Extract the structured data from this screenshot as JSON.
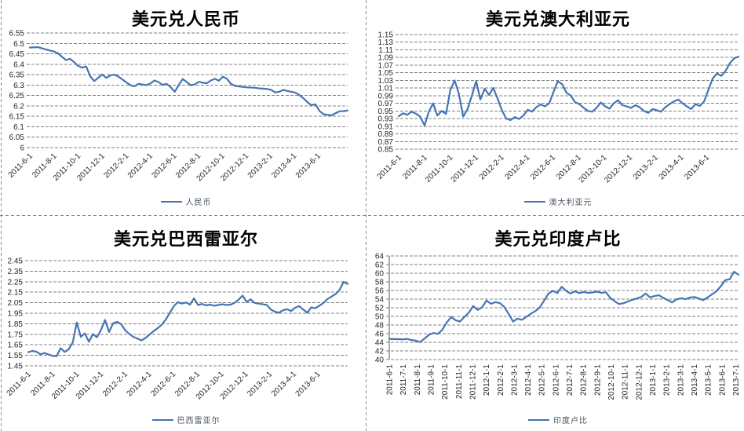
{
  "styles": {
    "line_color": "#4574b4",
    "grid_color": "#808080",
    "tick_color": "#262626",
    "title_color": "#000000",
    "legend_color": "#4a5560",
    "divider_color": "#8a8a8a",
    "background": "#ffffff"
  },
  "chart_data": [
    {
      "type": "line",
      "title": "美元兑人民币",
      "legend": "人民币",
      "color": "#4574b4",
      "y_min": 6.0,
      "y_max": 6.55,
      "y_ticks": [
        "6.55",
        "6.5",
        "6.45",
        "6.4",
        "6.35",
        "6.3",
        "6.25",
        "6.2",
        "6.15",
        "6.1",
        "6.05",
        "6"
      ],
      "x_labels": [
        "2011-6-1",
        "2011-8-1",
        "2011-10-1",
        "2011-12-1",
        "2012-2-1",
        "2012-4-1",
        "2012-6-1",
        "2012-8-1",
        "2012-10-1",
        "2012-12-1",
        "2013-2-1",
        "2013-4-1",
        "2013-6-1"
      ],
      "x_label_every_months": 2,
      "x_max_month": 26.5,
      "values": [
        6.48,
        6.481,
        6.482,
        6.477,
        6.471,
        6.466,
        6.461,
        6.452,
        6.436,
        6.42,
        6.426,
        6.41,
        6.392,
        6.384,
        6.389,
        6.343,
        6.319,
        6.335,
        6.351,
        6.334,
        6.346,
        6.35,
        6.341,
        6.327,
        6.313,
        6.3,
        6.294,
        6.306,
        6.303,
        6.3,
        6.308,
        6.322,
        6.314,
        6.301,
        6.306,
        6.29,
        6.268,
        6.3,
        6.329,
        6.315,
        6.299,
        6.303,
        6.316,
        6.311,
        6.309,
        6.322,
        6.33,
        6.321,
        6.34,
        6.33,
        6.306,
        6.296,
        6.293,
        6.291,
        6.289,
        6.288,
        6.287,
        6.284,
        6.283,
        6.281,
        6.277,
        6.265,
        6.268,
        6.277,
        6.272,
        6.268,
        6.264,
        6.252,
        6.237,
        6.218,
        6.203,
        6.208,
        6.176,
        6.16,
        6.157,
        6.155,
        6.165,
        6.174,
        6.175,
        6.178
      ]
    },
    {
      "type": "line",
      "title": "美元兑澳大利亚元",
      "legend": "澳大利亚元",
      "color": "#4574b4",
      "y_min": 0.85,
      "y_max": 1.15,
      "y_ticks": [
        "1.15",
        "1.13",
        "1.11",
        "1.09",
        "1.07",
        "1.05",
        "1.03",
        "1.01",
        "0.99",
        "0.97",
        "0.95",
        "0.93",
        "0.91",
        "0.89",
        "0.87",
        "0.85"
      ],
      "x_labels": [
        "2011-6-1",
        "2011-8-1",
        "2011-10-1",
        "2011-12-1",
        "2012-2-1",
        "2012-4-1",
        "2012-6-1",
        "2012-8-1",
        "2012-10-1",
        "2012-12-1",
        "2013-2-1",
        "2013-4-1",
        "2013-6-1"
      ],
      "x_label_every_months": 2,
      "x_max_month": 26.5,
      "values": [
        0.936,
        0.944,
        0.94,
        0.948,
        0.943,
        0.935,
        0.912,
        0.948,
        0.97,
        0.938,
        0.95,
        0.942,
        1.005,
        1.03,
        0.995,
        0.935,
        0.955,
        0.99,
        1.028,
        0.98,
        1.008,
        0.992,
        1.01,
        0.982,
        0.952,
        0.93,
        0.926,
        0.934,
        0.929,
        0.938,
        0.953,
        0.948,
        0.96,
        0.967,
        0.962,
        0.97,
        1.0,
        1.028,
        1.02,
        0.998,
        0.99,
        0.973,
        0.968,
        0.958,
        0.95,
        0.948,
        0.958,
        0.972,
        0.962,
        0.956,
        0.97,
        0.978,
        0.965,
        0.962,
        0.958,
        0.965,
        0.96,
        0.95,
        0.945,
        0.955,
        0.952,
        0.948,
        0.96,
        0.968,
        0.975,
        0.98,
        0.97,
        0.962,
        0.955,
        0.968,
        0.963,
        0.975,
        1.005,
        1.035,
        1.048,
        1.042,
        1.055,
        1.075,
        1.088,
        1.092
      ]
    },
    {
      "type": "line",
      "title": "美元兑巴西雷亚尔",
      "legend": "巴西雷亚尔",
      "color": "#4574b4",
      "y_min": 1.45,
      "y_max": 2.45,
      "y_ticks": [
        "2.45",
        "2.35",
        "2.25",
        "2.15",
        "2.05",
        "1.95",
        "1.85",
        "1.75",
        "1.65",
        "1.55",
        "1.45"
      ],
      "x_labels": [
        "2011-6-1",
        "2011-8-1",
        "2011-10-1",
        "2011-12-1",
        "2012-2-1",
        "2012-4-1",
        "2012-6-1",
        "2012-8-1",
        "2012-10-1",
        "2012-12-1",
        "2013-2-1",
        "2013-4-1",
        "2013-6-1"
      ],
      "x_label_every_months": 2,
      "x_max_month": 26.5,
      "values": [
        1.58,
        1.592,
        1.585,
        1.56,
        1.572,
        1.558,
        1.545,
        1.542,
        1.618,
        1.582,
        1.608,
        1.672,
        1.862,
        1.725,
        1.758,
        1.678,
        1.752,
        1.722,
        1.792,
        1.885,
        1.772,
        1.855,
        1.868,
        1.845,
        1.788,
        1.752,
        1.725,
        1.71,
        1.692,
        1.715,
        1.748,
        1.78,
        1.808,
        1.84,
        1.89,
        1.952,
        2.018,
        2.055,
        2.042,
        2.052,
        2.032,
        2.092,
        2.028,
        2.038,
        2.025,
        2.032,
        2.022,
        2.028,
        2.035,
        2.028,
        2.032,
        2.048,
        2.078,
        2.118,
        2.058,
        2.082,
        2.048,
        2.042,
        2.035,
        2.028,
        1.985,
        1.965,
        1.955,
        1.978,
        1.988,
        1.972,
        2.002,
        2.018,
        1.985,
        1.955,
        2.005,
        1.998,
        2.022,
        2.048,
        2.085,
        2.108,
        2.132,
        2.172,
        2.248,
        2.228
      ]
    },
    {
      "type": "line",
      "title": "美元兑印度卢比",
      "legend": "印度卢比",
      "color": "#4574b4",
      "y_min": 40,
      "y_max": 64,
      "y_ticks": [
        "64",
        "62",
        "60",
        "58",
        "56",
        "54",
        "52",
        "50",
        "48",
        "46",
        "44",
        "42",
        "40"
      ],
      "x_labels": [
        "2011-6-1",
        "2011-7-1",
        "2011-8-1",
        "2011-9-1",
        "2011-10-1",
        "2011-11-1",
        "2011-12-1",
        "2012-1-1",
        "2012-2-1",
        "2012-3-1",
        "2012-4-1",
        "2012-5-1",
        "2012-6-1",
        "2012-7-1",
        "2012-8-1",
        "2012-9-1",
        "2012-10-1",
        "2012-11-1",
        "2012-12-1",
        "2013-1-1",
        "2013-2-1",
        "2013-3-1",
        "2013-4-1",
        "2013-5-1",
        "2013-6-1",
        "2013-7-1"
      ],
      "x_label_every_months": 1,
      "x_max_month": 25.2,
      "values": [
        44.8,
        44.75,
        44.72,
        44.68,
        44.78,
        44.52,
        44.38,
        44.05,
        44.9,
        45.75,
        46.15,
        45.95,
        46.9,
        48.6,
        49.85,
        49.1,
        48.8,
        49.9,
        50.9,
        52.4,
        51.5,
        52.1,
        53.65,
        52.9,
        53.3,
        53.1,
        52.2,
        50.6,
        48.8,
        49.5,
        49.2,
        49.9,
        50.6,
        51.2,
        52.0,
        53.6,
        55.3,
        55.9,
        55.4,
        56.85,
        55.9,
        55.3,
        55.8,
        55.4,
        55.65,
        55.45,
        55.55,
        55.7,
        55.45,
        55.6,
        54.3,
        53.5,
        52.85,
        53.05,
        53.45,
        53.85,
        54.15,
        54.5,
        55.3,
        54.4,
        54.7,
        54.9,
        54.3,
        53.75,
        53.25,
        53.95,
        54.2,
        54.0,
        54.35,
        54.5,
        54.15,
        53.75,
        54.4,
        55.1,
        55.8,
        57.0,
        58.4,
        58.6,
        60.35,
        59.65
      ]
    }
  ]
}
